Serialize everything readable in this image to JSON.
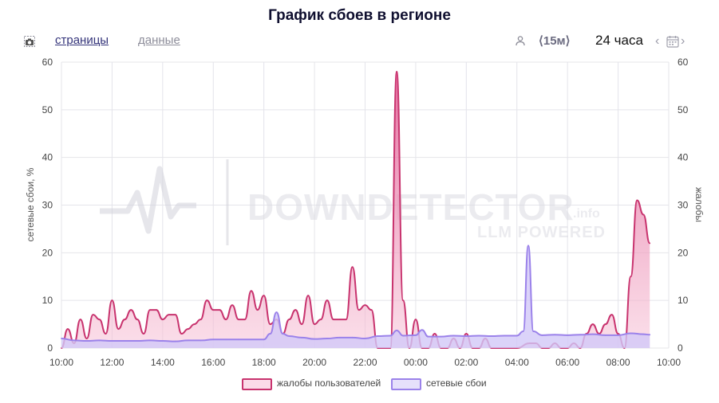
{
  "header": {
    "title": "График сбоев в регионе"
  },
  "toolbar": {
    "camera_icon": "camera-icon",
    "tabs": [
      {
        "label": "страницы",
        "active": true
      },
      {
        "label": "данные",
        "active": false
      }
    ],
    "user_icon": "user-icon",
    "interval_label": "⟨15м⟩",
    "range_label": "24 часа",
    "prev_icon": "chevron-left-icon",
    "calendar_icon": "calendar-icon",
    "next_icon": "chevron-right-icon"
  },
  "watermark": {
    "brand": "DOWNDETECTOR",
    "suffix": ".info",
    "tagline": "LLM POWERED"
  },
  "colors": {
    "complaints_line": "#c8336e",
    "complaints_fill": "#f2a9c5",
    "outages_line": "#9b82ea",
    "outages_fill": "#d2c8f7",
    "grid": "#e4e4ea"
  },
  "chart_data": {
    "type": "area",
    "title": "График сбоев в регионе",
    "xlabel": "",
    "ylabel": "сетевые сбои, %",
    "ylabel_right": "жалобы",
    "ylim": [
      0,
      60
    ],
    "yticks": [
      0,
      10,
      20,
      30,
      40,
      50,
      60
    ],
    "xlim": [
      0,
      24
    ],
    "xticks": [
      {
        "v": 0,
        "label": "10:00"
      },
      {
        "v": 2,
        "label": "12:00"
      },
      {
        "v": 4,
        "label": "14:00"
      },
      {
        "v": 6,
        "label": "16:00"
      },
      {
        "v": 8,
        "label": "18:00"
      },
      {
        "v": 10,
        "label": "20:00"
      },
      {
        "v": 12,
        "label": "22:00"
      },
      {
        "v": 14,
        "label": "00:00"
      },
      {
        "v": 16,
        "label": "02:00"
      },
      {
        "v": 18,
        "label": "04:00"
      },
      {
        "v": 20,
        "label": "06:00"
      },
      {
        "v": 22,
        "label": "08:00"
      },
      {
        "v": 24,
        "label": "10:00"
      }
    ],
    "grid": true,
    "legend_position": "bottom",
    "series": [
      {
        "name": "жалобы пользователей",
        "points": [
          [
            0,
            0
          ],
          [
            0.25,
            4
          ],
          [
            0.5,
            1
          ],
          [
            0.75,
            6
          ],
          [
            1,
            2
          ],
          [
            1.25,
            7
          ],
          [
            1.5,
            6
          ],
          [
            1.75,
            3
          ],
          [
            2,
            10
          ],
          [
            2.25,
            4
          ],
          [
            2.5,
            6
          ],
          [
            2.75,
            8
          ],
          [
            3,
            6
          ],
          [
            3.25,
            3
          ],
          [
            3.5,
            8
          ],
          [
            3.75,
            8
          ],
          [
            4,
            6
          ],
          [
            4.25,
            7
          ],
          [
            4.5,
            7
          ],
          [
            4.75,
            3
          ],
          [
            5,
            4
          ],
          [
            5.25,
            5
          ],
          [
            5.5,
            6
          ],
          [
            5.75,
            10
          ],
          [
            6,
            8
          ],
          [
            6.25,
            8
          ],
          [
            6.5,
            6
          ],
          [
            6.75,
            9
          ],
          [
            7,
            6
          ],
          [
            7.25,
            6
          ],
          [
            7.5,
            12
          ],
          [
            7.75,
            8
          ],
          [
            8,
            11
          ],
          [
            8.25,
            5
          ],
          [
            8.5,
            6
          ],
          [
            8.75,
            3
          ],
          [
            9,
            6
          ],
          [
            9.25,
            8
          ],
          [
            9.5,
            5
          ],
          [
            9.75,
            11
          ],
          [
            10,
            5
          ],
          [
            10.25,
            6
          ],
          [
            10.5,
            10
          ],
          [
            10.75,
            6
          ],
          [
            11,
            6
          ],
          [
            11.25,
            6
          ],
          [
            11.5,
            17
          ],
          [
            11.75,
            8
          ],
          [
            12,
            9
          ],
          [
            12.25,
            8
          ],
          [
            12.5,
            0
          ],
          [
            12.75,
            0
          ],
          [
            13,
            0
          ],
          [
            13.25,
            58
          ],
          [
            13.5,
            10
          ],
          [
            13.75,
            0
          ],
          [
            14,
            6
          ],
          [
            14.25,
            0
          ],
          [
            14.5,
            0
          ],
          [
            14.75,
            3
          ],
          [
            15,
            0
          ],
          [
            15.25,
            0
          ],
          [
            15.5,
            2
          ],
          [
            15.75,
            0
          ],
          [
            16,
            3
          ],
          [
            16.25,
            0
          ],
          [
            16.5,
            0
          ],
          [
            16.75,
            2
          ],
          [
            17,
            0
          ],
          [
            17.5,
            0
          ],
          [
            18,
            0
          ],
          [
            18.5,
            1
          ],
          [
            18.75,
            1
          ],
          [
            19,
            0
          ],
          [
            19.25,
            0
          ],
          [
            19.5,
            1
          ],
          [
            19.75,
            0
          ],
          [
            20,
            0
          ],
          [
            20.25,
            1
          ],
          [
            20.5,
            0
          ],
          [
            20.75,
            3
          ],
          [
            21,
            5
          ],
          [
            21.25,
            3
          ],
          [
            21.5,
            5
          ],
          [
            21.75,
            7
          ],
          [
            22,
            3
          ],
          [
            22.25,
            0
          ],
          [
            22.5,
            15
          ],
          [
            22.75,
            31
          ],
          [
            23,
            28
          ],
          [
            23.25,
            22
          ]
        ]
      },
      {
        "name": "сетевые сбои",
        "points": [
          [
            0,
            2
          ],
          [
            0.5,
            1.6
          ],
          [
            1,
            1.5
          ],
          [
            1.5,
            1.6
          ],
          [
            2,
            1.5
          ],
          [
            2.5,
            1.5
          ],
          [
            3,
            1.5
          ],
          [
            3.5,
            1.6
          ],
          [
            4,
            1.5
          ],
          [
            4.5,
            1.4
          ],
          [
            5,
            1.6
          ],
          [
            5.5,
            1.6
          ],
          [
            6,
            1.8
          ],
          [
            6.5,
            1.8
          ],
          [
            7,
            1.8
          ],
          [
            7.5,
            1.8
          ],
          [
            8,
            1.8
          ],
          [
            8.25,
            3
          ],
          [
            8.5,
            7.5
          ],
          [
            8.75,
            3
          ],
          [
            9,
            2.5
          ],
          [
            9.5,
            2.2
          ],
          [
            10,
            1.9
          ],
          [
            10.5,
            2.0
          ],
          [
            11,
            2.2
          ],
          [
            11.5,
            2.2
          ],
          [
            12,
            2.0
          ],
          [
            12.5,
            2.5
          ],
          [
            13,
            2.6
          ],
          [
            13.25,
            3.7
          ],
          [
            13.5,
            2.6
          ],
          [
            14,
            2.7
          ],
          [
            14.25,
            3.8
          ],
          [
            14.5,
            2.4
          ],
          [
            15,
            2.4
          ],
          [
            15.5,
            2.6
          ],
          [
            16,
            2.5
          ],
          [
            16.5,
            2.6
          ],
          [
            17,
            2.5
          ],
          [
            17.5,
            2.6
          ],
          [
            18,
            2.6
          ],
          [
            18.25,
            3.5
          ],
          [
            18.45,
            21.5
          ],
          [
            18.65,
            3.5
          ],
          [
            19,
            2.7
          ],
          [
            19.5,
            2.8
          ],
          [
            20,
            2.7
          ],
          [
            20.5,
            2.8
          ],
          [
            21,
            2.9
          ],
          [
            21.5,
            2.7
          ],
          [
            22,
            2.7
          ],
          [
            22.5,
            3.1
          ],
          [
            23,
            2.9
          ],
          [
            23.25,
            2.8
          ]
        ]
      }
    ]
  }
}
